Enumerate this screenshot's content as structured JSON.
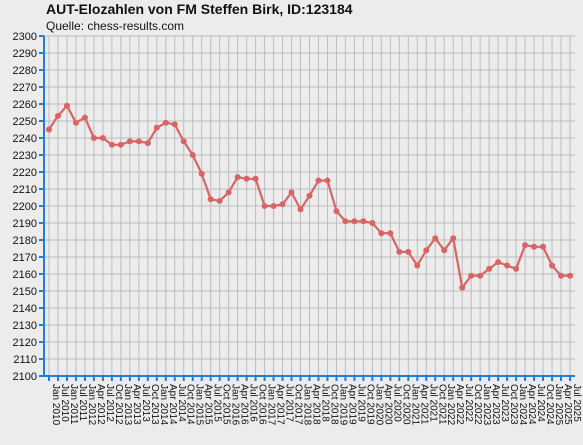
{
  "chart_data": {
    "type": "line",
    "title": "AUT-Elozahlen von FM Steffen Birk, ID:123184",
    "subtitle": "Quelle: chess-results.com",
    "xlabel": "",
    "ylabel": "",
    "ylim": [
      2100,
      2300
    ],
    "y_ticks": [
      2100,
      2110,
      2120,
      2130,
      2140,
      2150,
      2160,
      2170,
      2180,
      2190,
      2200,
      2210,
      2220,
      2230,
      2240,
      2250,
      2260,
      2270,
      2280,
      2290,
      2300
    ],
    "grid": true,
    "colors": {
      "line": "#d96464",
      "grid": "#bcbcbc",
      "axis": "#1e7fd6",
      "background": "#ececec"
    },
    "categories": [
      "Jan 2010",
      "Jul 2010",
      "Jan 2011",
      "Jul 2011",
      "Jan 2012",
      "Apr 2012",
      "Jul 2012",
      "Oct 2012",
      "Jan 2013",
      "Apr 2013",
      "Jul 2013",
      "Oct 2013",
      "Jan 2014",
      "Apr 2014",
      "Jul 2014",
      "Oct 2014",
      "Jan 2015",
      "Apr 2015",
      "Jul 2015",
      "Oct 2015",
      "Jan 2016",
      "Apr 2016",
      "Jul 2016",
      "Oct 2016",
      "Jan 2017",
      "Apr 2017",
      "Jul 2017",
      "Oct 2017",
      "Jan 2018",
      "Apr 2018",
      "Jul 2018",
      "Oct 2018",
      "Jan 2019",
      "Apr 2019",
      "Jul 2019",
      "Oct 2019",
      "Jan 2020",
      "Apr 2020",
      "Jul 2020",
      "Oct 2020",
      "Jan 2021",
      "Apr 2021",
      "Jul 2021",
      "Oct 2021",
      "Jan 2022",
      "Apr 2022",
      "Jul 2022",
      "Oct 2022",
      "Jan 2023",
      "Apr 2023",
      "Jul 2023",
      "Oct 2023",
      "Jan 2024",
      "Apr 2024",
      "Jul 2024",
      "Oct 2024",
      "Jan 2025",
      "Apr 2025",
      "Jul 2025"
    ],
    "series": [
      {
        "values": [
          2245,
          2253,
          2259,
          2249,
          2252,
          2240,
          2240,
          2236,
          2236,
          2238,
          2238,
          2237,
          2246,
          2249,
          2248,
          2238,
          2230,
          2219,
          2204,
          2203,
          2208,
          2217,
          2216,
          2216,
          2200,
          2200,
          2201,
          2208,
          2198,
          2206,
          2215,
          2215,
          2197,
          2191,
          2191,
          2191,
          2190,
          2184,
          2184,
          2173,
          2173,
          2165,
          2174,
          2181,
          2174,
          2181,
          2152,
          2159,
          2159,
          2163,
          2167,
          2165,
          2163,
          2177,
          2176,
          2176,
          2165,
          2159,
          2159
        ]
      }
    ]
  }
}
